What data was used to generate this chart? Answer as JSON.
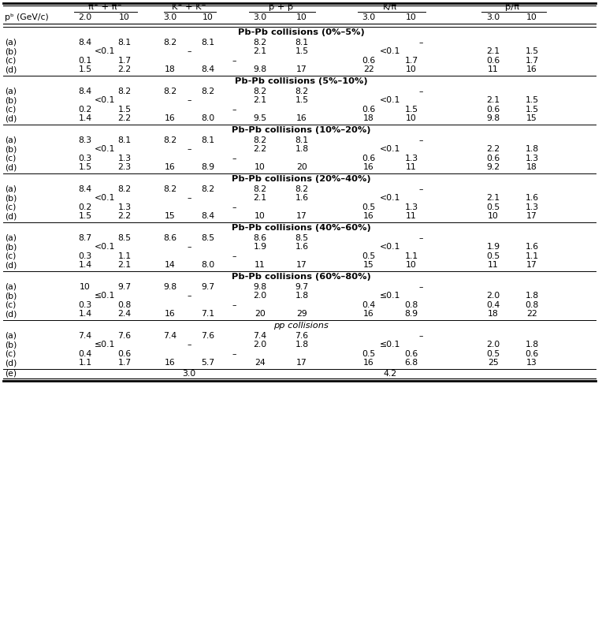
{
  "col_headers_top": [
    "π⁺ + π⁻",
    "K⁺ + K⁻",
    "p + ̅p",
    "K/π",
    "p/π"
  ],
  "sections": [
    {
      "title": "Pb-Pb collisions (0%–5%)",
      "title_italic": false,
      "rows": [
        {
          "label": "(a)",
          "pi1": "8.4",
          "pi2": "8.1",
          "k1": "8.2",
          "k2": "8.1",
          "p1": "8.2",
          "p2": "8.1",
          "kpi1": "",
          "kpi2": "",
          "kpi_dash": "–",
          "ppi1": "",
          "ppi2": ""
        },
        {
          "label": "(b)",
          "pi_mid": "<0.1",
          "k_dash": "–",
          "p1": "2.1",
          "p2": "1.5",
          "kpi_mid": "<0.1",
          "ppi1": "2.1",
          "ppi2": "1.5"
        },
        {
          "label": "(c)",
          "pi1": "0.1",
          "pi2": "1.7",
          "c_dash": "–",
          "kpi1": "0.6",
          "kpi2": "1.7",
          "ppi1": "0.6",
          "ppi2": "1.7"
        },
        {
          "label": "(d)",
          "pi1": "1.5",
          "pi2": "2.2",
          "k1": "18",
          "k2": "8.4",
          "p1": "9.8",
          "p2": "17",
          "kpi1": "22",
          "kpi2": "10",
          "ppi1": "11",
          "ppi2": "16"
        }
      ]
    },
    {
      "title": "Pb-Pb collisions (5%–10%)",
      "title_italic": false,
      "rows": [
        {
          "label": "(a)",
          "pi1": "8.4",
          "pi2": "8.2",
          "k1": "8.2",
          "k2": "8.2",
          "p1": "8.2",
          "p2": "8.2",
          "kpi1": "",
          "kpi2": "",
          "kpi_dash": "–",
          "ppi1": "",
          "ppi2": ""
        },
        {
          "label": "(b)",
          "pi_mid": "<0.1",
          "k_dash": "–",
          "p1": "2.1",
          "p2": "1.5",
          "kpi_mid": "<0.1",
          "ppi1": "2.1",
          "ppi2": "1.5"
        },
        {
          "label": "(c)",
          "pi1": "0.2",
          "pi2": "1.5",
          "c_dash": "–",
          "kpi1": "0.6",
          "kpi2": "1.5",
          "ppi1": "0.6",
          "ppi2": "1.5"
        },
        {
          "label": "(d)",
          "pi1": "1.4",
          "pi2": "2.2",
          "k1": "16",
          "k2": "8.0",
          "p1": "9.5",
          "p2": "16",
          "kpi1": "18",
          "kpi2": "10",
          "ppi1": "9.8",
          "ppi2": "15"
        }
      ]
    },
    {
      "title": "Pb-Pb collisions (10%–20%)",
      "title_italic": false,
      "rows": [
        {
          "label": "(a)",
          "pi1": "8.3",
          "pi2": "8.1",
          "k1": "8.2",
          "k2": "8.1",
          "p1": "8.2",
          "p2": "8.1",
          "kpi1": "",
          "kpi2": "",
          "kpi_dash": "–",
          "ppi1": "",
          "ppi2": ""
        },
        {
          "label": "(b)",
          "pi_mid": "<0.1",
          "k_dash": "–",
          "p1": "2.2",
          "p2": "1.8",
          "kpi_mid": "<0.1",
          "ppi1": "2.2",
          "ppi2": "1.8"
        },
        {
          "label": "(c)",
          "pi1": "0.3",
          "pi2": "1.3",
          "c_dash": "–",
          "kpi1": "0.6",
          "kpi2": "1.3",
          "ppi1": "0.6",
          "ppi2": "1.3"
        },
        {
          "label": "(d)",
          "pi1": "1.5",
          "pi2": "2.3",
          "k1": "16",
          "k2": "8.9",
          "p1": "10",
          "p2": "20",
          "kpi1": "16",
          "kpi2": "11",
          "ppi1": "9.2",
          "ppi2": "18"
        }
      ]
    },
    {
      "title": "Pb-Pb collisions (20%–40%)",
      "title_italic": false,
      "rows": [
        {
          "label": "(a)",
          "pi1": "8.4",
          "pi2": "8.2",
          "k1": "8.2",
          "k2": "8.2",
          "p1": "8.2",
          "p2": "8.2",
          "kpi1": "",
          "kpi2": "",
          "kpi_dash": "–",
          "ppi1": "",
          "ppi2": ""
        },
        {
          "label": "(b)",
          "pi_mid": "<0.1",
          "k_dash": "–",
          "p1": "2.1",
          "p2": "1.6",
          "kpi_mid": "<0.1",
          "ppi1": "2.1",
          "ppi2": "1.6"
        },
        {
          "label": "(c)",
          "pi1": "0.2",
          "pi2": "1.3",
          "c_dash": "–",
          "kpi1": "0.5",
          "kpi2": "1.3",
          "ppi1": "0.5",
          "ppi2": "1.3"
        },
        {
          "label": "(d)",
          "pi1": "1.5",
          "pi2": "2.2",
          "k1": "15",
          "k2": "8.4",
          "p1": "10",
          "p2": "17",
          "kpi1": "16",
          "kpi2": "11",
          "ppi1": "10",
          "ppi2": "17"
        }
      ]
    },
    {
      "title": "Pb-Pb collisions (40%–60%)",
      "title_italic": false,
      "rows": [
        {
          "label": "(a)",
          "pi1": "8.7",
          "pi2": "8.5",
          "k1": "8.6",
          "k2": "8.5",
          "p1": "8.6",
          "p2": "8.5",
          "kpi1": "",
          "kpi2": "",
          "kpi_dash": "–",
          "ppi1": "",
          "ppi2": ""
        },
        {
          "label": "(b)",
          "pi_mid": "<0.1",
          "k_dash": "–",
          "p1": "1.9",
          "p2": "1.6",
          "kpi_mid": "<0.1",
          "ppi1": "1.9",
          "ppi2": "1.6"
        },
        {
          "label": "(c)",
          "pi1": "0.3",
          "pi2": "1.1",
          "c_dash": "–",
          "kpi1": "0.5",
          "kpi2": "1.1",
          "ppi1": "0.5",
          "ppi2": "1.1"
        },
        {
          "label": "(d)",
          "pi1": "1.4",
          "pi2": "2.1",
          "k1": "14",
          "k2": "8.0",
          "p1": "11",
          "p2": "17",
          "kpi1": "15",
          "kpi2": "10",
          "ppi1": "11",
          "ppi2": "17"
        }
      ]
    },
    {
      "title": "Pb-Pb collisions (60%–80%)",
      "title_italic": false,
      "rows": [
        {
          "label": "(a)",
          "pi1": "10",
          "pi2": "9.7",
          "k1": "9.8",
          "k2": "9.7",
          "p1": "9.8",
          "p2": "9.7",
          "kpi1": "",
          "kpi2": "",
          "kpi_dash": "–",
          "ppi1": "",
          "ppi2": ""
        },
        {
          "label": "(b)",
          "pi_mid": "≤0.1",
          "k_dash": "–",
          "p1": "2.0",
          "p2": "1.8",
          "kpi_mid": "≤0.1",
          "ppi1": "2.0",
          "ppi2": "1.8"
        },
        {
          "label": "(c)",
          "pi1": "0.3",
          "pi2": "0.8",
          "c_dash": "–",
          "kpi1": "0.4",
          "kpi2": "0.8",
          "ppi1": "0.4",
          "ppi2": "0.8"
        },
        {
          "label": "(d)",
          "pi1": "1.4",
          "pi2": "2.4",
          "k1": "16",
          "k2": "7.1",
          "p1": "20",
          "p2": "29",
          "kpi1": "16",
          "kpi2": "8.9",
          "ppi1": "18",
          "ppi2": "22"
        }
      ]
    },
    {
      "title": "pp collisions",
      "title_italic": true,
      "rows": [
        {
          "label": "(a)",
          "pi1": "7.4",
          "pi2": "7.6",
          "k1": "7.4",
          "k2": "7.6",
          "p1": "7.4",
          "p2": "7.6",
          "kpi1": "",
          "kpi2": "",
          "kpi_dash": "–",
          "ppi1": "",
          "ppi2": ""
        },
        {
          "label": "(b)",
          "pi_mid": "≤0.1",
          "k_dash": "–",
          "p1": "2.0",
          "p2": "1.8",
          "kpi_mid": "≤0.1",
          "ppi1": "2.0",
          "ppi2": "1.8"
        },
        {
          "label": "(c)",
          "pi1": "0.4",
          "pi2": "0.6",
          "c_dash": "–",
          "kpi1": "0.5",
          "kpi2": "0.6",
          "ppi1": "0.5",
          "ppi2": "0.6"
        },
        {
          "label": "(d)",
          "pi1": "1.1",
          "pi2": "1.7",
          "k1": "16",
          "k2": "5.7",
          "p1": "24",
          "p2": "17",
          "kpi1": "16",
          "kpi2": "6.8",
          "ppi1": "25",
          "ppi2": "13"
        }
      ]
    }
  ],
  "row_e_k": "3.0",
  "row_e_kpi": "4.2",
  "background_color": "#ffffff",
  "text_color": "#000000",
  "font_size": 7.8,
  "section_title_fontsize": 8.2
}
